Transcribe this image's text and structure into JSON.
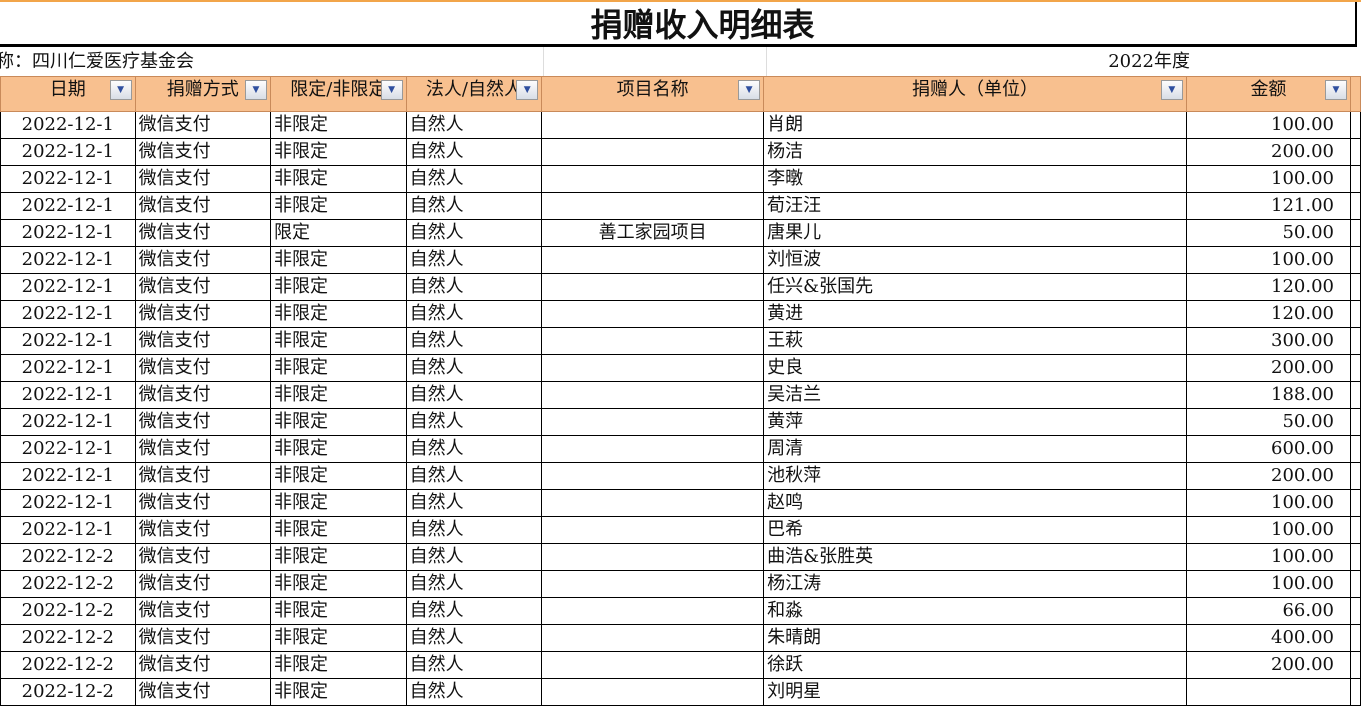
{
  "title": "捐赠收入明细表",
  "org": "称：四川仁爱医疗基金会",
  "year": "2022年度",
  "headers": [
    "日期",
    "捐赠方式",
    "限定/非限定",
    "法人/自然人",
    "项目名称",
    "捐赠人（单位）",
    "金额"
  ],
  "rows": [
    [
      "2022-12-1",
      "微信支付",
      "非限定",
      "自然人",
      "",
      "肖朗",
      "100.00"
    ],
    [
      "2022-12-1",
      "微信支付",
      "非限定",
      "自然人",
      "",
      "杨洁",
      "200.00"
    ],
    [
      "2022-12-1",
      "微信支付",
      "非限定",
      "自然人",
      "",
      "李暾",
      "100.00"
    ],
    [
      "2022-12-1",
      "微信支付",
      "非限定",
      "自然人",
      "",
      "荀汪汪",
      "121.00"
    ],
    [
      "2022-12-1",
      "微信支付",
      "限定",
      "自然人",
      "善工家园项目",
      "唐果儿",
      "50.00"
    ],
    [
      "2022-12-1",
      "微信支付",
      "非限定",
      "自然人",
      "",
      "刘恒波",
      "100.00"
    ],
    [
      "2022-12-1",
      "微信支付",
      "非限定",
      "自然人",
      "",
      "任兴&张国先",
      "120.00"
    ],
    [
      "2022-12-1",
      "微信支付",
      "非限定",
      "自然人",
      "",
      "黄进",
      "120.00"
    ],
    [
      "2022-12-1",
      "微信支付",
      "非限定",
      "自然人",
      "",
      "王萩",
      "300.00"
    ],
    [
      "2022-12-1",
      "微信支付",
      "非限定",
      "自然人",
      "",
      "史良",
      "200.00"
    ],
    [
      "2022-12-1",
      "微信支付",
      "非限定",
      "自然人",
      "",
      "吴洁兰",
      "188.00"
    ],
    [
      "2022-12-1",
      "微信支付",
      "非限定",
      "自然人",
      "",
      "黄萍",
      "50.00"
    ],
    [
      "2022-12-1",
      "微信支付",
      "非限定",
      "自然人",
      "",
      "周清",
      "600.00"
    ],
    [
      "2022-12-1",
      "微信支付",
      "非限定",
      "自然人",
      "",
      "池秋萍",
      "200.00"
    ],
    [
      "2022-12-1",
      "微信支付",
      "非限定",
      "自然人",
      "",
      "赵鸣",
      "100.00"
    ],
    [
      "2022-12-1",
      "微信支付",
      "非限定",
      "自然人",
      "",
      "巴希",
      "100.00"
    ],
    [
      "2022-12-2",
      "微信支付",
      "非限定",
      "自然人",
      "",
      "曲浩&张胜英",
      "100.00"
    ],
    [
      "2022-12-2",
      "微信支付",
      "非限定",
      "自然人",
      "",
      "杨江涛",
      "100.00"
    ],
    [
      "2022-12-2",
      "微信支付",
      "非限定",
      "自然人",
      "",
      "和淼",
      "66.00"
    ],
    [
      "2022-12-2",
      "微信支付",
      "非限定",
      "自然人",
      "",
      "朱晴朗",
      "400.00"
    ],
    [
      "2022-12-2",
      "微信支付",
      "非限定",
      "自然人",
      "",
      "徐跃",
      "200.00"
    ],
    [
      "2022-12-2",
      "微信支付",
      "非限定",
      "自然人",
      "",
      "刘明星",
      ""
    ]
  ],
  "colors": {
    "header_bg": "#f8c08f",
    "accent_line": "#f2a54a"
  }
}
